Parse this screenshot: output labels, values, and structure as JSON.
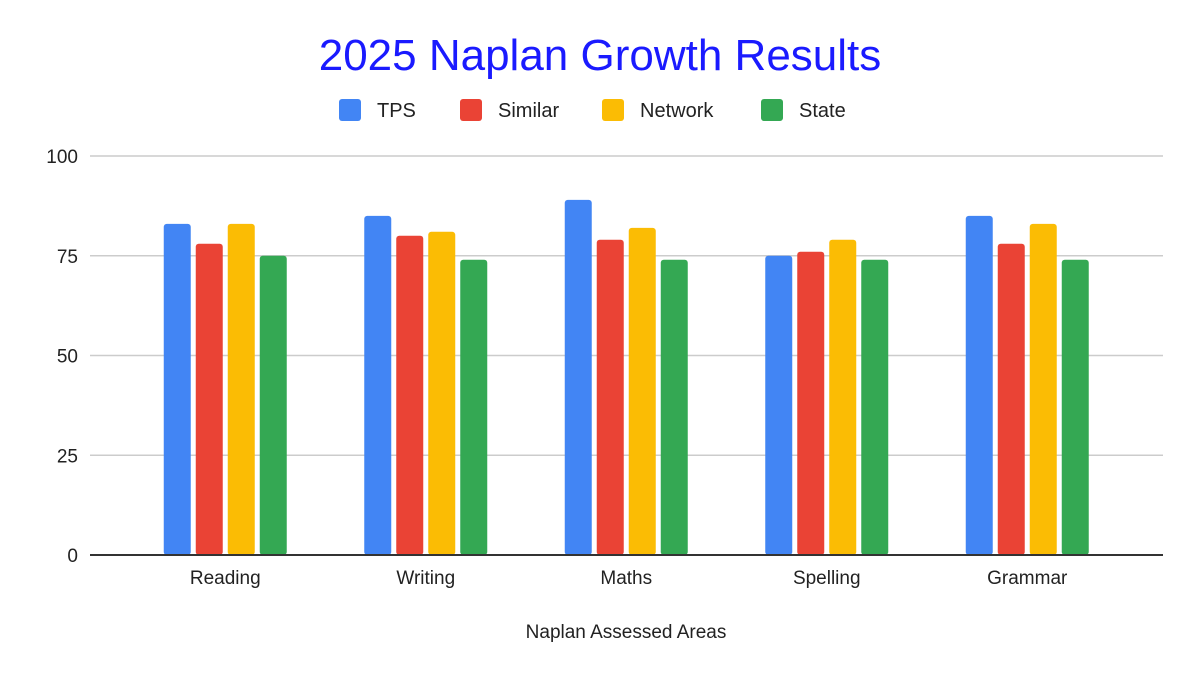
{
  "chart_data": {
    "type": "bar",
    "title": "2025 Naplan Growth Results",
    "xlabel": "Naplan Assessed Areas",
    "ylabel": "",
    "categories": [
      "Reading",
      "Writing",
      "Maths",
      "Spelling",
      "Grammar"
    ],
    "series": [
      {
        "name": "TPS",
        "color": "#4285f4",
        "values": [
          83,
          85,
          89,
          75,
          85
        ]
      },
      {
        "name": "Similar",
        "color": "#ea4335",
        "values": [
          78,
          80,
          79,
          76,
          78
        ]
      },
      {
        "name": "Network",
        "color": "#fbbc04",
        "values": [
          83,
          81,
          82,
          79,
          83
        ]
      },
      {
        "name": "State",
        "color": "#34a853",
        "values": [
          75,
          74,
          74,
          74,
          74
        ]
      }
    ],
    "ylim": [
      0,
      100
    ],
    "yticks": [
      "0",
      "25",
      "50",
      "75",
      "100"
    ],
    "grid": true,
    "legend": "top-center"
  }
}
